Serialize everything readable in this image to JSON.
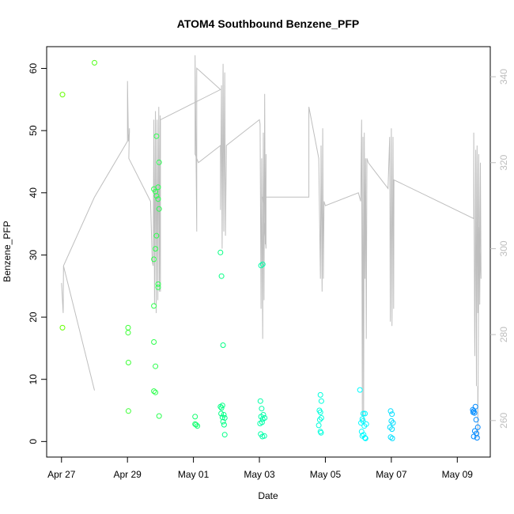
{
  "chart_data": {
    "type": "scatter",
    "title": "ATOM4 Southbound Benzene_PFP",
    "xlabel": "Date",
    "ylabel": "Benzene_PFP",
    "x_ticks": [
      "Apr 27",
      "Apr 29",
      "May 01",
      "May 03",
      "May 05",
      "May 07",
      "May 09"
    ],
    "x_tick_positions_days": [
      0,
      2,
      4,
      6,
      8,
      10,
      12
    ],
    "xlim_days": [
      -0.45,
      13.0
    ],
    "ylim": [
      -2.5,
      63.5
    ],
    "y_ticks": [
      0,
      10,
      20,
      30,
      40,
      50,
      60
    ],
    "y2lim": [
      251.5,
      347.0
    ],
    "y2_ticks": [
      260,
      280,
      300,
      320,
      340
    ],
    "grid": false,
    "legend": "none",
    "colors": {
      "points_start": "#66ff00",
      "points_mid": "#00ff88",
      "points_cyan": "#00ffff",
      "points_end": "#0088ff",
      "secondary_line": "#bebebe",
      "axis": "#000000",
      "secondary_axis": "#bebebe"
    },
    "points": [
      [
        0.03,
        55.8
      ],
      [
        0.03,
        18.3
      ],
      [
        1.0,
        60.9
      ],
      [
        2.02,
        18.3
      ],
      [
        2.02,
        17.5
      ],
      [
        2.03,
        12.7
      ],
      [
        2.03,
        4.9
      ],
      [
        2.8,
        40.6
      ],
      [
        2.8,
        29.3
      ],
      [
        2.8,
        21.8
      ],
      [
        2.8,
        16.0
      ],
      [
        2.8,
        8.1
      ],
      [
        2.85,
        40.2
      ],
      [
        2.85,
        31.0
      ],
      [
        2.85,
        12.1
      ],
      [
        2.85,
        7.9
      ],
      [
        2.88,
        49.1
      ],
      [
        2.88,
        39.5
      ],
      [
        2.88,
        33.1
      ],
      [
        2.93,
        40.9
      ],
      [
        2.93,
        39.0
      ],
      [
        2.93,
        25.3
      ],
      [
        2.93,
        24.8
      ],
      [
        2.96,
        44.9
      ],
      [
        2.96,
        37.4
      ],
      [
        2.96,
        4.1
      ],
      [
        4.05,
        4.0
      ],
      [
        4.05,
        2.8
      ],
      [
        4.08,
        2.7
      ],
      [
        4.12,
        2.5
      ],
      [
        4.82,
        30.4
      ],
      [
        4.85,
        26.6
      ],
      [
        4.9,
        15.5
      ],
      [
        4.82,
        5.6
      ],
      [
        4.85,
        5.4
      ],
      [
        4.88,
        5.8
      ],
      [
        4.84,
        4.5
      ],
      [
        4.88,
        3.9
      ],
      [
        4.9,
        3.2
      ],
      [
        4.93,
        2.7
      ],
      [
        4.92,
        4.3
      ],
      [
        4.95,
        3.8
      ],
      [
        4.95,
        1.1
      ],
      [
        6.05,
        28.3
      ],
      [
        6.1,
        28.5
      ],
      [
        6.03,
        6.5
      ],
      [
        6.07,
        5.3
      ],
      [
        6.05,
        4.0
      ],
      [
        6.1,
        3.6
      ],
      [
        6.02,
        2.9
      ],
      [
        6.08,
        3.1
      ],
      [
        6.04,
        1.2
      ],
      [
        6.09,
        0.8
      ],
      [
        6.15,
        0.9
      ],
      [
        6.12,
        4.3
      ],
      [
        6.16,
        3.8
      ],
      [
        7.85,
        7.5
      ],
      [
        7.88,
        6.5
      ],
      [
        7.82,
        5.0
      ],
      [
        7.85,
        4.7
      ],
      [
        7.83,
        3.5
      ],
      [
        7.88,
        3.8
      ],
      [
        7.8,
        2.6
      ],
      [
        7.85,
        1.6
      ],
      [
        7.87,
        1.4
      ],
      [
        9.05,
        8.3
      ],
      [
        9.08,
        3.0
      ],
      [
        9.12,
        3.6
      ],
      [
        9.15,
        4.5
      ],
      [
        9.2,
        4.5
      ],
      [
        9.14,
        3.3
      ],
      [
        9.1,
        1.6
      ],
      [
        9.16,
        1.1
      ],
      [
        9.2,
        0.6
      ],
      [
        9.12,
        0.9
      ],
      [
        9.24,
        2.8
      ],
      [
        9.18,
        2.5
      ],
      [
        9.22,
        0.5
      ],
      [
        9.98,
        4.9
      ],
      [
        10.02,
        4.4
      ],
      [
        10.0,
        3.3
      ],
      [
        9.96,
        2.3
      ],
      [
        10.02,
        2.0
      ],
      [
        9.98,
        0.7
      ],
      [
        10.03,
        0.5
      ],
      [
        10.05,
        3.0
      ],
      [
        12.47,
        5.1
      ],
      [
        12.5,
        4.9
      ],
      [
        12.52,
        4.6
      ],
      [
        12.55,
        5.6
      ],
      [
        12.48,
        4.7
      ],
      [
        12.57,
        3.5
      ],
      [
        12.62,
        2.3
      ],
      [
        12.53,
        1.7
      ],
      [
        12.58,
        1.3
      ],
      [
        12.5,
        0.8
      ],
      [
        12.6,
        0.6
      ]
    ],
    "secondary_line": [
      [
        0.0,
        292
      ],
      [
        0.05,
        285
      ],
      [
        0.06,
        296
      ],
      [
        1.0,
        267
      ],
      [
        0.06,
        296
      ],
      [
        1.0,
        312
      ],
      [
        2.0,
        325
      ],
      [
        2.0,
        339
      ],
      [
        2.03,
        325
      ],
      [
        2.06,
        327
      ],
      [
        2.06,
        328
      ],
      [
        2.05,
        325
      ],
      [
        2.04,
        321
      ],
      [
        2.7,
        311
      ],
      [
        2.75,
        297
      ],
      [
        2.78,
        296
      ],
      [
        2.8,
        330
      ],
      [
        2.82,
        287
      ],
      [
        2.85,
        332
      ],
      [
        2.87,
        285
      ],
      [
        2.9,
        330
      ],
      [
        2.92,
        288
      ],
      [
        2.95,
        333
      ],
      [
        2.97,
        290
      ],
      [
        2.99,
        331
      ],
      [
        3.0,
        290
      ],
      [
        3.0,
        330
      ],
      [
        4.82,
        337
      ],
      [
        4.1,
        342
      ],
      [
        4.1,
        304
      ],
      [
        4.05,
        345
      ],
      [
        4.05,
        322
      ],
      [
        4.15,
        320
      ],
      [
        4.82,
        324
      ],
      [
        4.82,
        309
      ],
      [
        4.85,
        338
      ],
      [
        4.87,
        300
      ],
      [
        4.9,
        343
      ],
      [
        4.92,
        304
      ],
      [
        4.95,
        341
      ],
      [
        4.97,
        303
      ],
      [
        5.0,
        324
      ],
      [
        5.0,
        324
      ],
      [
        6.0,
        330
      ],
      [
        6.02,
        329
      ],
      [
        6.05,
        286
      ],
      [
        6.07,
        321
      ],
      [
        6.1,
        279
      ],
      [
        6.12,
        327
      ],
      [
        6.14,
        288
      ],
      [
        6.16,
        336
      ],
      [
        6.18,
        301
      ],
      [
        6.2,
        322
      ],
      [
        6.2,
        300
      ],
      [
        6.1,
        312
      ],
      [
        6.1,
        312
      ],
      [
        7.5,
        312
      ],
      [
        7.5,
        333
      ],
      [
        7.8,
        321
      ],
      [
        7.85,
        293
      ],
      [
        7.87,
        324
      ],
      [
        7.9,
        290
      ],
      [
        7.92,
        328
      ],
      [
        7.94,
        293
      ],
      [
        7.96,
        311
      ],
      [
        7.96,
        311
      ],
      [
        8.0,
        310
      ],
      [
        9.0,
        313
      ],
      [
        9.07,
        311
      ],
      [
        9.1,
        330
      ],
      [
        9.12,
        261
      ],
      [
        9.14,
        326
      ],
      [
        9.16,
        259
      ],
      [
        9.18,
        327
      ],
      [
        9.2,
        293
      ],
      [
        9.22,
        321
      ],
      [
        9.24,
        279
      ],
      [
        9.26,
        321
      ],
      [
        9.3,
        320
      ],
      [
        9.5,
        318
      ],
      [
        9.9,
        314
      ],
      [
        9.95,
        326
      ],
      [
        9.97,
        283
      ],
      [
        10.0,
        328
      ],
      [
        10.02,
        282
      ],
      [
        10.05,
        326
      ],
      [
        10.07,
        286
      ],
      [
        10.08,
        316
      ],
      [
        10.08,
        316
      ],
      [
        12.5,
        307
      ],
      [
        12.5,
        327
      ],
      [
        12.53,
        275
      ],
      [
        12.56,
        323
      ],
      [
        12.58,
        268
      ],
      [
        12.6,
        324
      ],
      [
        12.62,
        285
      ],
      [
        12.65,
        322
      ],
      [
        12.68,
        287
      ],
      [
        12.7,
        320
      ],
      [
        12.72,
        293
      ],
      [
        12.66,
        305
      ],
      [
        12.62,
        256
      ],
      [
        12.62,
        268
      ]
    ]
  }
}
